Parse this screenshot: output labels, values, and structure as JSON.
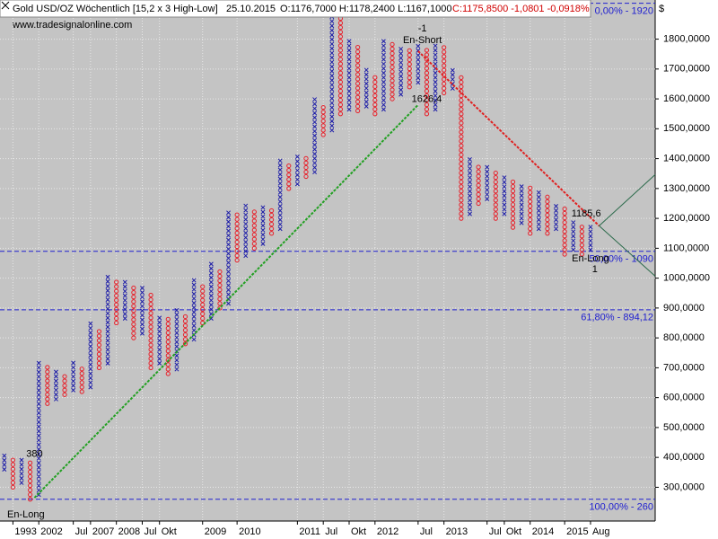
{
  "chart_data": {
    "type": "point-and-figure",
    "title": "Gold USD/OZ Wöchentlich [15,2 x 3 High-Low]",
    "date": "25.10.2015",
    "ohlc_text": "O:1176,7000 H:1178,2400 L:1167,1000",
    "change_text": "C:1175,8500 -1,0801 -0,0918%",
    "subtitle": "www.tradesignalonline.com",
    "currency": "$",
    "box_size": 15.2,
    "x_color": "#1c1ca8",
    "o_color": "#e8202a",
    "grid": true,
    "ylim": [
      187,
      1931
    ],
    "xlim": [
      -0.5,
      75.5
    ],
    "yticks": [
      {
        "value": 300,
        "label": "300,0000"
      },
      {
        "value": 400,
        "label": "400,0000"
      },
      {
        "value": 500,
        "label": "500,0000"
      },
      {
        "value": 600,
        "label": "600,0000"
      },
      {
        "value": 700,
        "label": "700,0000"
      },
      {
        "value": 800,
        "label": "800,0000"
      },
      {
        "value": 900,
        "label": "900,0000"
      },
      {
        "value": 1000,
        "label": "1000,0000"
      },
      {
        "value": 1100,
        "label": "1100,0000"
      },
      {
        "value": 1200,
        "label": "1200,0000"
      },
      {
        "value": 1300,
        "label": "1300,0000"
      },
      {
        "value": 1400,
        "label": "1400,0000"
      },
      {
        "value": 1500,
        "label": "1500,0000"
      },
      {
        "value": 1600,
        "label": "1600,0000"
      },
      {
        "value": 1700,
        "label": "1700,0000"
      },
      {
        "value": 1800,
        "label": "1800,0000"
      }
    ],
    "xticks": [
      {
        "value": 1,
        "label": "1993"
      },
      {
        "value": 4,
        "label": "2002"
      },
      {
        "value": 8,
        "label": "Jul"
      },
      {
        "value": 10,
        "label": "2007"
      },
      {
        "value": 13,
        "label": "2008"
      },
      {
        "value": 16,
        "label": "Jul"
      },
      {
        "value": 18,
        "label": "Okt"
      },
      {
        "value": 23,
        "label": "2009"
      },
      {
        "value": 27,
        "label": "2010"
      },
      {
        "value": 34,
        "label": "2011"
      },
      {
        "value": 37,
        "label": "Jul"
      },
      {
        "value": 40,
        "label": "Okt"
      },
      {
        "value": 43,
        "label": "2012"
      },
      {
        "value": 48,
        "label": "Jul"
      },
      {
        "value": 51,
        "label": "2013"
      },
      {
        "value": 56,
        "label": "Jul"
      },
      {
        "value": 58,
        "label": "Okt"
      },
      {
        "value": 61,
        "label": "2014"
      },
      {
        "value": 65,
        "label": "2015"
      },
      {
        "value": 68,
        "label": "Aug"
      }
    ],
    "levels": [
      {
        "value": 1920,
        "label": "0,00% - 1920"
      },
      {
        "value": 1090,
        "label": "50,00% - 1090"
      },
      {
        "value": 894.12,
        "label": "61,80% - 894,12"
      },
      {
        "value": 260,
        "label": "100,00% - 260"
      }
    ],
    "trend_lines": [
      {
        "color": "#22a022",
        "from": [
          3.5,
          265
        ],
        "to": [
          48,
          1580
        ]
      },
      {
        "color": "#e02020",
        "from": [
          48,
          1760
        ],
        "to": [
          69,
          1175
        ]
      }
    ],
    "annotations": [
      {
        "text": "En-Long",
        "x": 2.5,
        "y": 208
      },
      {
        "text": "380",
        "x": 3.5,
        "y": 410
      },
      {
        "text": "-1",
        "x": 48.5,
        "y": 1834
      },
      {
        "text": "En-Short",
        "x": 48.5,
        "y": 1795
      },
      {
        "text": "1626,4",
        "x": 49,
        "y": 1599
      },
      {
        "text": "1185,6",
        "x": 67.5,
        "y": 1215
      },
      {
        "text": "En-Long",
        "x": 68,
        "y": 1065
      },
      {
        "text": "1",
        "x": 68.5,
        "y": 1029
      }
    ],
    "columns": [
      {
        "type": "X",
        "low": 360,
        "high": 420
      },
      {
        "type": "O",
        "low": 300,
        "high": 405
      },
      {
        "type": "X",
        "low": 315,
        "high": 400
      },
      {
        "type": "O",
        "low": 260,
        "high": 385
      },
      {
        "type": "X",
        "low": 275,
        "high": 730
      },
      {
        "type": "O",
        "low": 580,
        "high": 715
      },
      {
        "type": "X",
        "low": 595,
        "high": 700
      },
      {
        "type": "O",
        "low": 610,
        "high": 685
      },
      {
        "type": "X",
        "low": 625,
        "high": 720
      },
      {
        "type": "O",
        "low": 620,
        "high": 705
      },
      {
        "type": "X",
        "low": 635,
        "high": 850
      },
      {
        "type": "O",
        "low": 700,
        "high": 835
      },
      {
        "type": "X",
        "low": 715,
        "high": 1010
      },
      {
        "type": "O",
        "low": 850,
        "high": 995
      },
      {
        "type": "X",
        "low": 865,
        "high": 990
      },
      {
        "type": "O",
        "low": 800,
        "high": 975
      },
      {
        "type": "X",
        "low": 815,
        "high": 970
      },
      {
        "type": "O",
        "low": 700,
        "high": 955
      },
      {
        "type": "X",
        "low": 715,
        "high": 880
      },
      {
        "type": "O",
        "low": 680,
        "high": 865
      },
      {
        "type": "X",
        "low": 695,
        "high": 900
      },
      {
        "type": "O",
        "low": 780,
        "high": 885
      },
      {
        "type": "X",
        "low": 795,
        "high": 1000
      },
      {
        "type": "O",
        "low": 850,
        "high": 985
      },
      {
        "type": "X",
        "low": 865,
        "high": 1050
      },
      {
        "type": "O",
        "low": 900,
        "high": 1035
      },
      {
        "type": "X",
        "low": 915,
        "high": 1230
      },
      {
        "type": "O",
        "low": 1060,
        "high": 1215
      },
      {
        "type": "X",
        "low": 1075,
        "high": 1250
      },
      {
        "type": "O",
        "low": 1100,
        "high": 1235
      },
      {
        "type": "X",
        "low": 1115,
        "high": 1250
      },
      {
        "type": "O",
        "low": 1150,
        "high": 1235
      },
      {
        "type": "X",
        "low": 1165,
        "high": 1400
      },
      {
        "type": "O",
        "low": 1300,
        "high": 1385
      },
      {
        "type": "X",
        "low": 1315,
        "high": 1420
      },
      {
        "type": "O",
        "low": 1340,
        "high": 1405
      },
      {
        "type": "X",
        "low": 1355,
        "high": 1600
      },
      {
        "type": "O",
        "low": 1480,
        "high": 1585
      },
      {
        "type": "X",
        "low": 1495,
        "high": 1900
      },
      {
        "type": "O",
        "low": 1550,
        "high": 1885
      },
      {
        "type": "X",
        "low": 1565,
        "high": 1800
      },
      {
        "type": "O",
        "low": 1560,
        "high": 1785
      },
      {
        "type": "X",
        "low": 1575,
        "high": 1700
      },
      {
        "type": "O",
        "low": 1550,
        "high": 1685
      },
      {
        "type": "X",
        "low": 1565,
        "high": 1800
      },
      {
        "type": "O",
        "low": 1600,
        "high": 1785
      },
      {
        "type": "X",
        "low": 1615,
        "high": 1780
      },
      {
        "type": "O",
        "low": 1640,
        "high": 1765
      },
      {
        "type": "X",
        "low": 1655,
        "high": 1780
      },
      {
        "type": "O",
        "low": 1550,
        "high": 1765
      },
      {
        "type": "X",
        "low": 1565,
        "high": 1790
      },
      {
        "type": "O",
        "low": 1620,
        "high": 1775
      },
      {
        "type": "X",
        "low": 1635,
        "high": 1700
      },
      {
        "type": "O",
        "low": 1200,
        "high": 1685
      },
      {
        "type": "X",
        "low": 1215,
        "high": 1400
      },
      {
        "type": "O",
        "low": 1250,
        "high": 1385
      },
      {
        "type": "X",
        "low": 1265,
        "high": 1380
      },
      {
        "type": "O",
        "low": 1200,
        "high": 1365
      },
      {
        "type": "X",
        "low": 1215,
        "high": 1350
      },
      {
        "type": "O",
        "low": 1170,
        "high": 1335
      },
      {
        "type": "X",
        "low": 1185,
        "high": 1320
      },
      {
        "type": "O",
        "low": 1150,
        "high": 1305
      },
      {
        "type": "X",
        "low": 1165,
        "high": 1300
      },
      {
        "type": "O",
        "low": 1150,
        "high": 1285
      },
      {
        "type": "X",
        "low": 1165,
        "high": 1250
      },
      {
        "type": "O",
        "low": 1080,
        "high": 1235
      },
      {
        "type": "X",
        "low": 1095,
        "high": 1200
      },
      {
        "type": "O",
        "low": 1080,
        "high": 1185
      },
      {
        "type": "X",
        "low": 1095,
        "high": 1185
      }
    ]
  }
}
